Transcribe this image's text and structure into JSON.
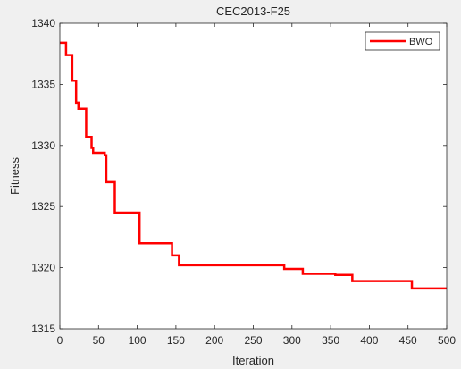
{
  "chart_data": {
    "type": "line",
    "title": "CEC2013-F25",
    "xlabel": "Iteration",
    "ylabel": "Fitness",
    "xlim": [
      0,
      500
    ],
    "ylim": [
      1315,
      1340
    ],
    "xticks": [
      0,
      50,
      100,
      150,
      200,
      250,
      300,
      350,
      400,
      450,
      500
    ],
    "yticks": [
      1315,
      1320,
      1325,
      1330,
      1335,
      1340
    ],
    "grid": false,
    "legend": {
      "position": "top-right",
      "entries": [
        "BWO"
      ]
    },
    "series": [
      {
        "name": "BWO",
        "color": "#ff0000",
        "points": [
          [
            0,
            1338.4
          ],
          [
            8,
            1338.4
          ],
          [
            8,
            1337.4
          ],
          [
            16,
            1337.4
          ],
          [
            16,
            1335.3
          ],
          [
            21,
            1335.3
          ],
          [
            21,
            1333.5
          ],
          [
            24,
            1333.5
          ],
          [
            24,
            1333.0
          ],
          [
            34,
            1333.0
          ],
          [
            34,
            1330.7
          ],
          [
            41,
            1330.7
          ],
          [
            41,
            1329.8
          ],
          [
            43,
            1329.8
          ],
          [
            43,
            1329.4
          ],
          [
            58,
            1329.4
          ],
          [
            58,
            1329.2
          ],
          [
            60,
            1329.2
          ],
          [
            60,
            1327.0
          ],
          [
            71,
            1327.0
          ],
          [
            71,
            1324.5
          ],
          [
            103,
            1324.5
          ],
          [
            103,
            1322.0
          ],
          [
            145,
            1322.0
          ],
          [
            145,
            1321.0
          ],
          [
            154,
            1321.0
          ],
          [
            154,
            1320.2
          ],
          [
            290,
            1320.2
          ],
          [
            290,
            1319.9
          ],
          [
            314,
            1319.9
          ],
          [
            314,
            1319.5
          ],
          [
            356,
            1319.5
          ],
          [
            356,
            1319.4
          ],
          [
            378,
            1319.4
          ],
          [
            378,
            1318.9
          ],
          [
            455,
            1318.9
          ],
          [
            455,
            1318.3
          ],
          [
            500,
            1318.3
          ]
        ]
      }
    ]
  }
}
